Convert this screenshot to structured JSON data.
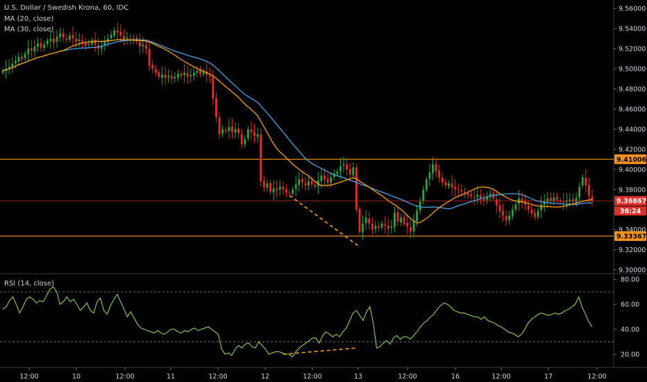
{
  "chart_data": {
    "type": "candlestick",
    "title": "U.S. Dollar / Swedish Krona, 60, IDC",
    "legend": [
      {
        "label": "MA (20, close)",
        "color": "#f7a11a"
      },
      {
        "label": "MA (30, close)",
        "color": "#4aa3df"
      }
    ],
    "price_axis": {
      "ticks": [
        "9.56000",
        "9.54000",
        "9.52000",
        "9.50000",
        "9.48000",
        "9.46000",
        "9.44000",
        "9.42000",
        "9.40000",
        "9.38000",
        "9.34000",
        "9.32000",
        "9.30000"
      ],
      "tick_values": [
        9.56,
        9.54,
        9.52,
        9.5,
        9.48,
        9.46,
        9.44,
        9.42,
        9.4,
        9.38,
        9.34,
        9.32,
        9.3
      ],
      "range": [
        9.297,
        9.567
      ]
    },
    "time_axis": {
      "labels": [
        "12:00",
        "10",
        "12:00",
        "11",
        "12:00",
        "12",
        "12:00",
        "13",
        "12:00",
        "16",
        "12:00",
        "17",
        "12:00"
      ]
    },
    "horizontal_lines": [
      {
        "value": 9.41006,
        "label": "9.41006",
        "color": "#f7931a"
      },
      {
        "value": 9.33367,
        "label": "9.33367",
        "color": "#f7931a"
      },
      {
        "value": 9.36867,
        "label": "9.36867",
        "color": "#e0302b"
      }
    ],
    "countdown": "36:24",
    "up_color": "#26a641",
    "down_color": "#e0302b",
    "candles_close": [
      9.498,
      9.5,
      9.502,
      9.505,
      9.508,
      9.512,
      9.51,
      9.515,
      9.52,
      9.518,
      9.522,
      9.525,
      9.521,
      9.524,
      9.528,
      9.53,
      9.526,
      9.532,
      9.535,
      9.531,
      9.529,
      9.533,
      9.53,
      9.527,
      9.529,
      9.526,
      9.523,
      9.525,
      9.528,
      9.524,
      9.52,
      9.522,
      9.527,
      9.53,
      9.534,
      9.538,
      9.536,
      9.533,
      9.529,
      9.531,
      9.528,
      9.53,
      9.527,
      9.522,
      9.524,
      9.52,
      9.503,
      9.5,
      9.496,
      9.492,
      9.494,
      9.491,
      9.493,
      9.49,
      9.492,
      9.495,
      9.493,
      9.496,
      9.492,
      9.494,
      9.496,
      9.498,
      9.495,
      9.497,
      9.494,
      9.492,
      9.47,
      9.452,
      9.435,
      9.44,
      9.438,
      9.442,
      9.437,
      9.44,
      9.436,
      9.425,
      9.43,
      9.44,
      9.437,
      9.433,
      9.435,
      9.388,
      9.382,
      9.386,
      9.378,
      9.381,
      9.379,
      9.383,
      9.38,
      9.377,
      9.376,
      9.38,
      9.385,
      9.39,
      9.387,
      9.384,
      9.388,
      9.385,
      9.383,
      9.389,
      9.394,
      9.39,
      9.387,
      9.392,
      9.396,
      9.398,
      9.403,
      9.405,
      9.4,
      9.395,
      9.402,
      9.36,
      9.338,
      9.346,
      9.352,
      9.346,
      9.34,
      9.344,
      9.342,
      9.346,
      9.344,
      9.341,
      9.343,
      9.357,
      9.348,
      9.352,
      9.346,
      9.343,
      9.338,
      9.349,
      9.359,
      9.368,
      9.38,
      9.39,
      9.397,
      9.405,
      9.398,
      9.392,
      9.387,
      9.384,
      9.386,
      9.382,
      9.38,
      9.379,
      9.378,
      9.376,
      9.374,
      9.373,
      9.372,
      9.375,
      9.371,
      9.369,
      9.373,
      9.376,
      9.371,
      9.364,
      9.358,
      9.354,
      9.349,
      9.354,
      9.36,
      9.365,
      9.371,
      9.368,
      9.365,
      9.36,
      9.356,
      9.353,
      9.359,
      9.365,
      9.368,
      9.371,
      9.369,
      9.372,
      9.37,
      9.368,
      9.367,
      9.369,
      9.37,
      9.368,
      9.372,
      9.383,
      9.392,
      9.384,
      9.374,
      9.369
    ]
  },
  "rsi": {
    "label": "RSI (14, close)",
    "ticks": [
      "80.00",
      "60.00",
      "40.00",
      "20.00"
    ],
    "tick_values": [
      80,
      60,
      40,
      20
    ],
    "range": [
      10,
      84
    ],
    "line_color": "#8fd14f",
    "bands": [
      70,
      30
    ],
    "values": [
      56,
      58,
      63,
      66,
      60,
      53,
      58,
      64,
      66,
      64,
      61,
      63,
      62,
      67,
      72,
      74,
      70,
      60,
      62,
      66,
      62,
      64,
      60,
      55,
      58,
      61,
      55,
      53,
      62,
      65,
      55,
      52,
      59,
      64,
      68,
      62,
      56,
      50,
      54,
      49,
      44,
      41,
      40,
      39,
      38,
      37,
      39,
      37,
      36,
      38,
      40,
      40,
      38,
      37,
      39,
      38,
      40,
      41,
      39,
      40,
      41,
      42,
      40,
      38,
      36,
      24,
      20,
      21,
      19,
      24,
      27,
      25,
      28,
      29,
      26,
      25,
      30,
      27,
      24,
      20,
      21,
      22,
      22,
      21,
      20,
      20,
      18,
      22,
      25,
      27,
      29,
      31,
      33,
      33,
      29,
      35,
      38,
      36,
      34,
      36,
      34,
      38,
      41,
      47,
      53,
      55,
      51,
      47,
      54,
      58,
      45,
      25,
      26,
      29,
      31,
      28,
      33,
      35,
      32,
      34,
      34,
      32,
      35,
      38,
      42,
      45,
      47,
      50,
      52,
      56,
      59,
      61,
      60,
      58,
      55,
      54,
      53,
      53,
      52,
      51,
      50,
      50,
      48,
      50,
      47,
      46,
      45,
      43,
      42,
      40,
      38,
      37,
      36,
      34,
      36,
      40,
      45,
      48,
      50,
      52,
      53,
      52,
      51,
      52,
      53,
      52,
      53,
      55,
      56,
      58,
      60,
      66,
      58,
      52,
      46,
      42
    ]
  }
}
